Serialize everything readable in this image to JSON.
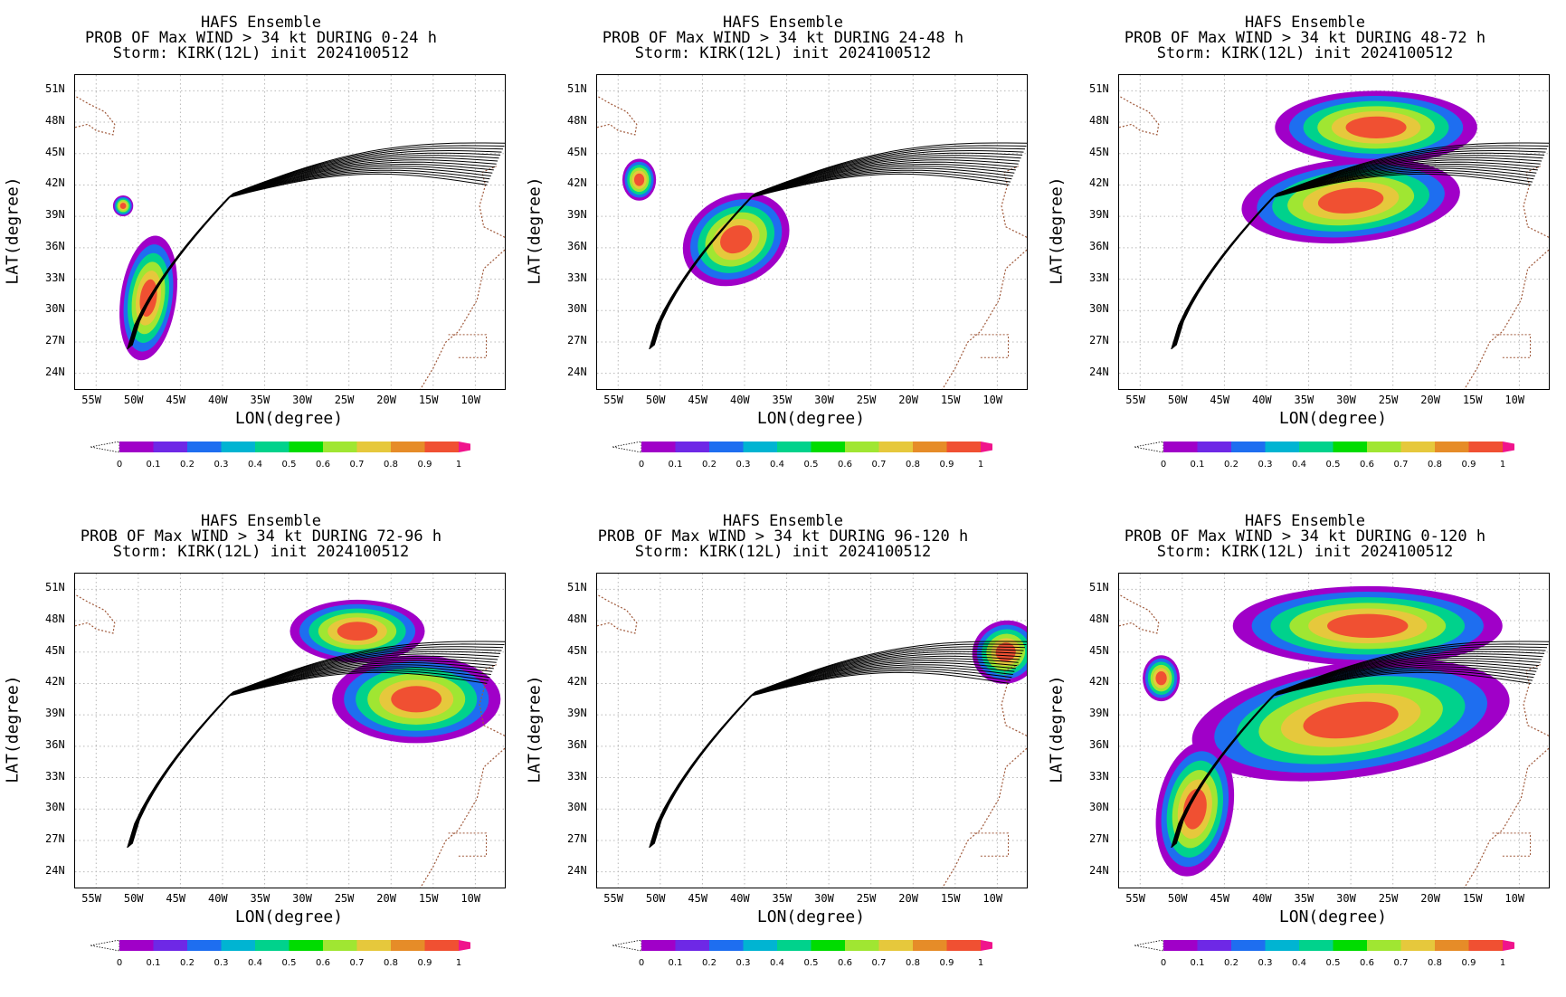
{
  "figure": {
    "model": "HAFS Ensemble",
    "storm_line": "Storm: KIRK(12L) init 2024100512",
    "xlabel": "LON(degree)",
    "ylabel": "LAT(degree)",
    "lon_ticks": [
      "55W",
      "50W",
      "45W",
      "40W",
      "35W",
      "30W",
      "25W",
      "20W",
      "15W",
      "10W"
    ],
    "lat_ticks": [
      "51N",
      "48N",
      "45N",
      "42N",
      "39N",
      "36N",
      "33N",
      "30N",
      "27N",
      "24N"
    ],
    "colorbar_labels": [
      "0",
      "0.1",
      "0.2",
      "0.3",
      "0.4",
      "0.5",
      "0.6",
      "0.7",
      "0.8",
      "0.9",
      "1"
    ],
    "colorbar_colors": [
      "#a000c8",
      "#6e28e6",
      "#1e6ef0",
      "#00b4d2",
      "#00d28c",
      "#00dc00",
      "#a0e632",
      "#e6c83c",
      "#e68c28",
      "#f05032"
    ],
    "colorbar_over": "#f0148c"
  },
  "panels": [
    {
      "title_line2": "PROB OF Max WIND > 34 kt DURING  0-24 h"
    },
    {
      "title_line2": "PROB OF Max WIND > 34 kt DURING 24-48 h"
    },
    {
      "title_line2": "PROB OF Max WIND > 34 kt DURING 48-72 h"
    },
    {
      "title_line2": "PROB OF Max WIND > 34 kt DURING 72-96 h"
    },
    {
      "title_line2": "PROB OF Max WIND > 34 kt DURING 96-120 h"
    },
    {
      "title_line2": "PROB OF Max WIND > 34 kt DURING 0-120 h"
    }
  ]
}
